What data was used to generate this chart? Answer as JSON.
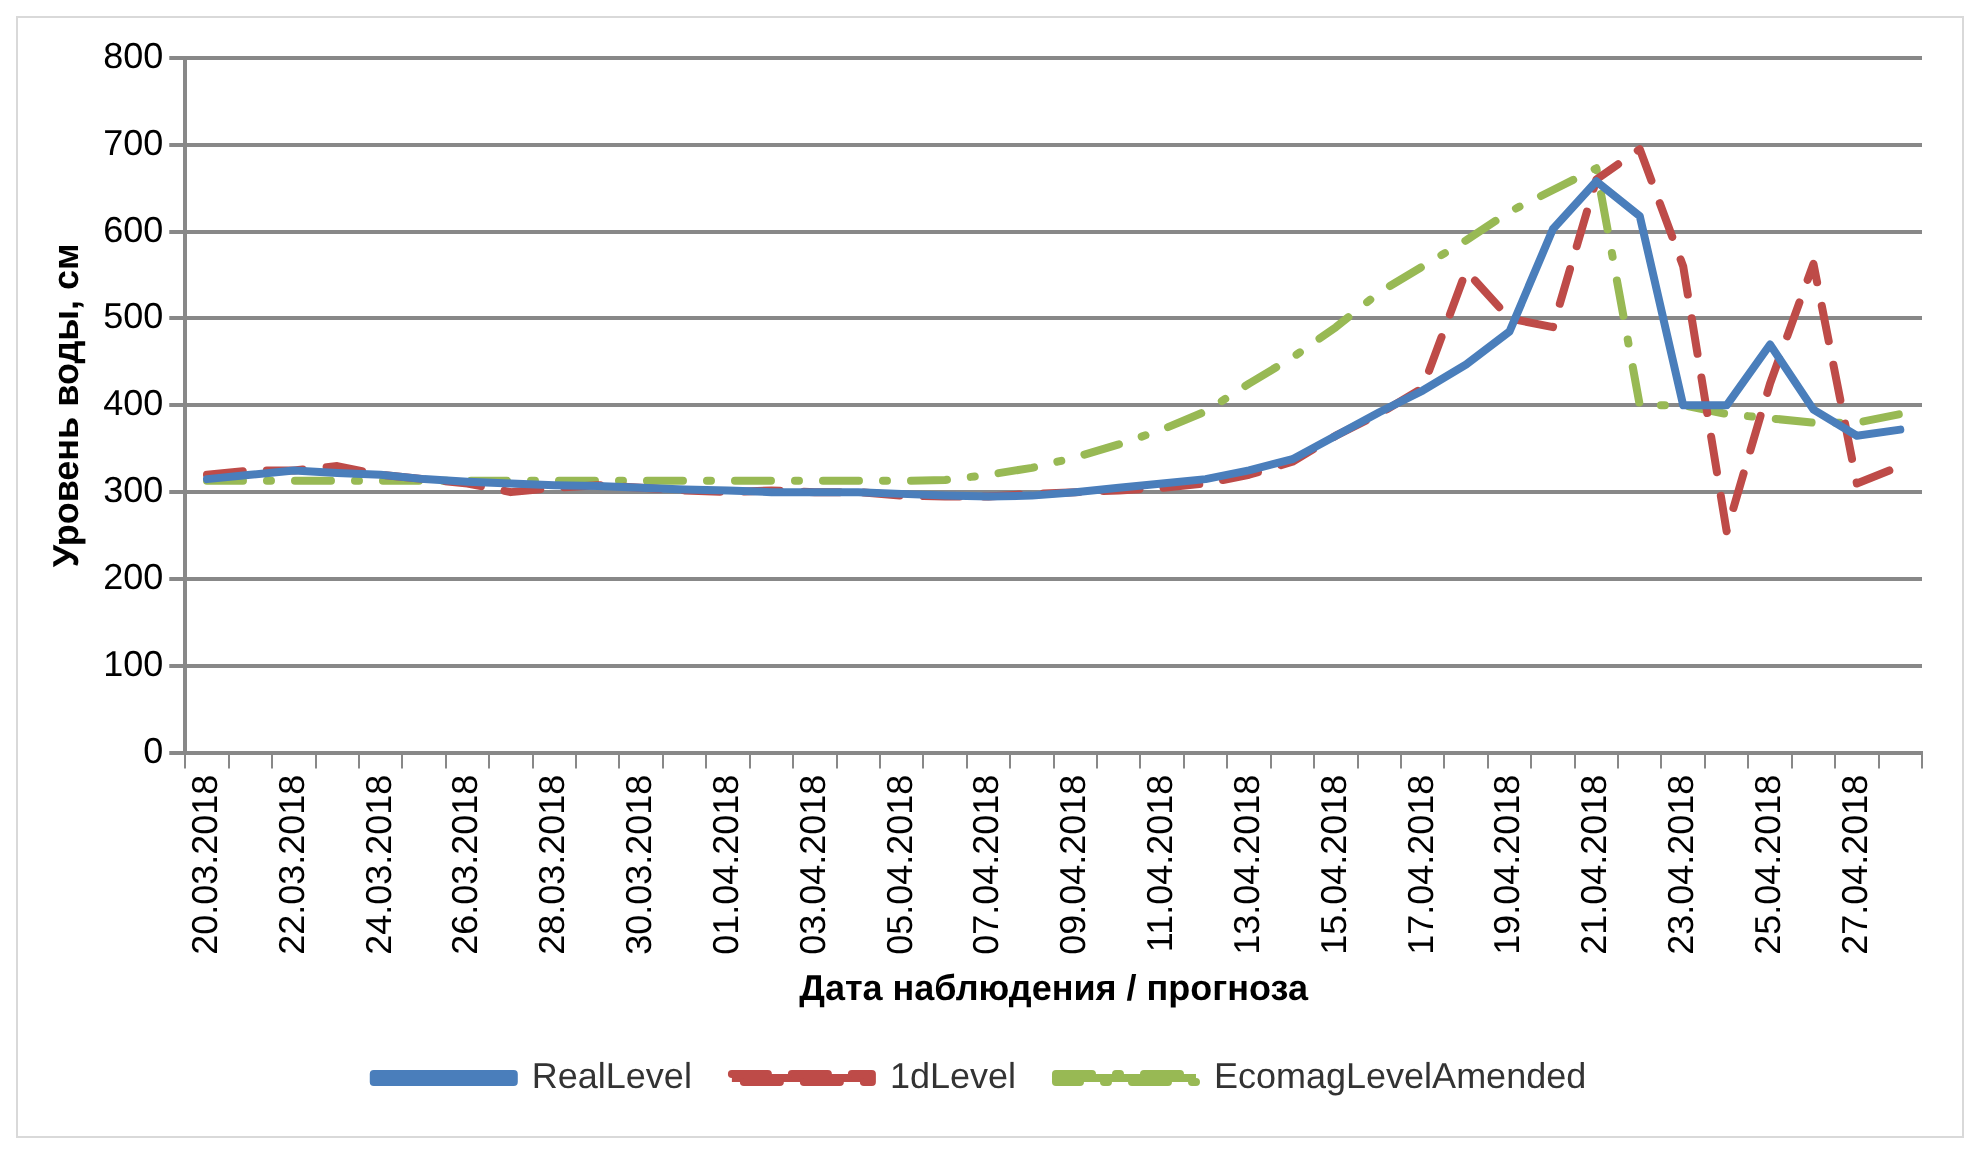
{
  "chart_data": {
    "type": "line",
    "xlabel": "Дата наблюдения / прогноза",
    "ylabel": "Уровень воды, см",
    "categories": [
      "20.03.2018",
      null,
      "22.03.2018",
      null,
      "24.03.2018",
      null,
      "26.03.2018",
      null,
      "28.03.2018",
      null,
      "30.03.2018",
      null,
      "01.04.2018",
      null,
      "03.04.2018",
      null,
      "05.04.2018",
      null,
      "07.04.2018",
      null,
      "09.04.2018",
      null,
      "11.04.2018",
      null,
      "13.04.2018",
      null,
      "15.04.2018",
      null,
      "17.04.2018",
      null,
      "19.04.2018",
      null,
      "21.04.2018",
      null,
      "23.04.2018",
      null,
      "25.04.2018",
      null,
      "27.04.2018",
      null
    ],
    "series": [
      {
        "name": "RealLevel",
        "color": "#4a7ebb",
        "line_style": "solid",
        "values": [
          315,
          320,
          325,
          322,
          320,
          315,
          312,
          310,
          308,
          307,
          305,
          303,
          302,
          300,
          300,
          300,
          298,
          296,
          295,
          296,
          300,
          305,
          310,
          315,
          325,
          338,
          365,
          392,
          417,
          447,
          485,
          603,
          658,
          618,
          400,
          400,
          470,
          395,
          365,
          372
        ]
      },
      {
        "name": "1dLevel",
        "color": "#be4b48",
        "line_style": "dashed",
        "values": [
          320,
          325,
          325,
          330,
          320,
          315,
          310,
          300,
          305,
          308,
          305,
          302,
          300,
          302,
          300,
          300,
          296,
          295,
          295,
          298,
          300,
          302,
          305,
          310,
          320,
          335,
          365,
          390,
          420,
          555,
          500,
          490,
          660,
          695,
          560,
          255,
          425,
          563,
          310,
          330
        ]
      },
      {
        "name": "EcomagLevelAmended",
        "color": "#98b954",
        "line_style": "dashdot",
        "values": [
          313,
          313,
          313,
          313,
          313,
          313,
          313,
          313,
          313,
          313,
          313,
          313,
          313,
          313,
          313,
          313,
          313,
          314,
          320,
          328,
          340,
          355,
          372,
          393,
          425,
          455,
          490,
          530,
          560,
          590,
          623,
          648,
          673,
          400,
          400,
          390,
          385,
          380,
          380,
          390
        ]
      }
    ],
    "ylim": [
      0,
      800
    ],
    "yticks": [
      0,
      100,
      200,
      300,
      400,
      500,
      600,
      700,
      800
    ],
    "grid": "y",
    "legend": "bottom",
    "marker": "none"
  }
}
